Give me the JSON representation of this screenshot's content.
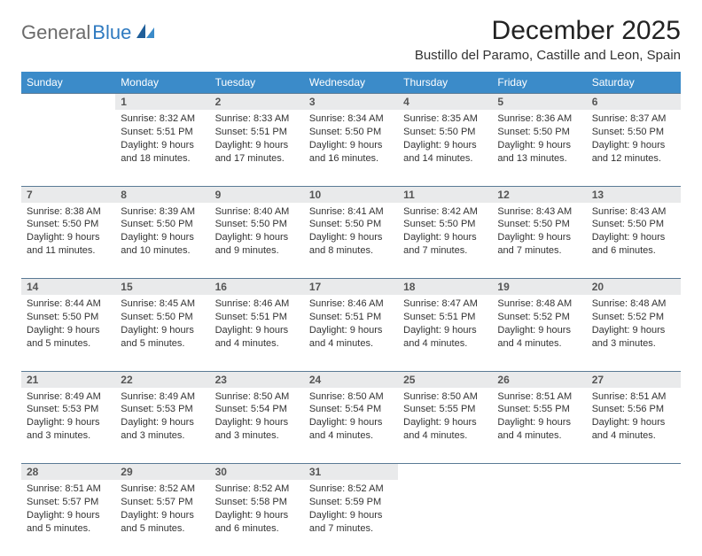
{
  "brand": {
    "part1": "General",
    "part2": "Blue"
  },
  "title": "December 2025",
  "location": "Bustillo del Paramo, Castille and Leon, Spain",
  "colors": {
    "header_bg": "#3b8bc9",
    "header_text": "#ffffff",
    "daynum_bg": "#e9eaeb",
    "rule": "#5a7a95",
    "logo_gray": "#6b6b6b",
    "logo_blue": "#2f7ac0"
  },
  "day_labels": [
    "Sunday",
    "Monday",
    "Tuesday",
    "Wednesday",
    "Thursday",
    "Friday",
    "Saturday"
  ],
  "weeks": [
    [
      null,
      {
        "n": "1",
        "sr": "8:32 AM",
        "ss": "5:51 PM",
        "dl": "9 hours and 18 minutes."
      },
      {
        "n": "2",
        "sr": "8:33 AM",
        "ss": "5:51 PM",
        "dl": "9 hours and 17 minutes."
      },
      {
        "n": "3",
        "sr": "8:34 AM",
        "ss": "5:50 PM",
        "dl": "9 hours and 16 minutes."
      },
      {
        "n": "4",
        "sr": "8:35 AM",
        "ss": "5:50 PM",
        "dl": "9 hours and 14 minutes."
      },
      {
        "n": "5",
        "sr": "8:36 AM",
        "ss": "5:50 PM",
        "dl": "9 hours and 13 minutes."
      },
      {
        "n": "6",
        "sr": "8:37 AM",
        "ss": "5:50 PM",
        "dl": "9 hours and 12 minutes."
      }
    ],
    [
      {
        "n": "7",
        "sr": "8:38 AM",
        "ss": "5:50 PM",
        "dl": "9 hours and 11 minutes."
      },
      {
        "n": "8",
        "sr": "8:39 AM",
        "ss": "5:50 PM",
        "dl": "9 hours and 10 minutes."
      },
      {
        "n": "9",
        "sr": "8:40 AM",
        "ss": "5:50 PM",
        "dl": "9 hours and 9 minutes."
      },
      {
        "n": "10",
        "sr": "8:41 AM",
        "ss": "5:50 PM",
        "dl": "9 hours and 8 minutes."
      },
      {
        "n": "11",
        "sr": "8:42 AM",
        "ss": "5:50 PM",
        "dl": "9 hours and 7 minutes."
      },
      {
        "n": "12",
        "sr": "8:43 AM",
        "ss": "5:50 PM",
        "dl": "9 hours and 7 minutes."
      },
      {
        "n": "13",
        "sr": "8:43 AM",
        "ss": "5:50 PM",
        "dl": "9 hours and 6 minutes."
      }
    ],
    [
      {
        "n": "14",
        "sr": "8:44 AM",
        "ss": "5:50 PM",
        "dl": "9 hours and 5 minutes."
      },
      {
        "n": "15",
        "sr": "8:45 AM",
        "ss": "5:50 PM",
        "dl": "9 hours and 5 minutes."
      },
      {
        "n": "16",
        "sr": "8:46 AM",
        "ss": "5:51 PM",
        "dl": "9 hours and 4 minutes."
      },
      {
        "n": "17",
        "sr": "8:46 AM",
        "ss": "5:51 PM",
        "dl": "9 hours and 4 minutes."
      },
      {
        "n": "18",
        "sr": "8:47 AM",
        "ss": "5:51 PM",
        "dl": "9 hours and 4 minutes."
      },
      {
        "n": "19",
        "sr": "8:48 AM",
        "ss": "5:52 PM",
        "dl": "9 hours and 4 minutes."
      },
      {
        "n": "20",
        "sr": "8:48 AM",
        "ss": "5:52 PM",
        "dl": "9 hours and 3 minutes."
      }
    ],
    [
      {
        "n": "21",
        "sr": "8:49 AM",
        "ss": "5:53 PM",
        "dl": "9 hours and 3 minutes."
      },
      {
        "n": "22",
        "sr": "8:49 AM",
        "ss": "5:53 PM",
        "dl": "9 hours and 3 minutes."
      },
      {
        "n": "23",
        "sr": "8:50 AM",
        "ss": "5:54 PM",
        "dl": "9 hours and 3 minutes."
      },
      {
        "n": "24",
        "sr": "8:50 AM",
        "ss": "5:54 PM",
        "dl": "9 hours and 4 minutes."
      },
      {
        "n": "25",
        "sr": "8:50 AM",
        "ss": "5:55 PM",
        "dl": "9 hours and 4 minutes."
      },
      {
        "n": "26",
        "sr": "8:51 AM",
        "ss": "5:55 PM",
        "dl": "9 hours and 4 minutes."
      },
      {
        "n": "27",
        "sr": "8:51 AM",
        "ss": "5:56 PM",
        "dl": "9 hours and 4 minutes."
      }
    ],
    [
      {
        "n": "28",
        "sr": "8:51 AM",
        "ss": "5:57 PM",
        "dl": "9 hours and 5 minutes."
      },
      {
        "n": "29",
        "sr": "8:52 AM",
        "ss": "5:57 PM",
        "dl": "9 hours and 5 minutes."
      },
      {
        "n": "30",
        "sr": "8:52 AM",
        "ss": "5:58 PM",
        "dl": "9 hours and 6 minutes."
      },
      {
        "n": "31",
        "sr": "8:52 AM",
        "ss": "5:59 PM",
        "dl": "9 hours and 7 minutes."
      },
      null,
      null,
      null
    ]
  ],
  "labels": {
    "sunrise": "Sunrise:",
    "sunset": "Sunset:",
    "daylight": "Daylight:"
  }
}
